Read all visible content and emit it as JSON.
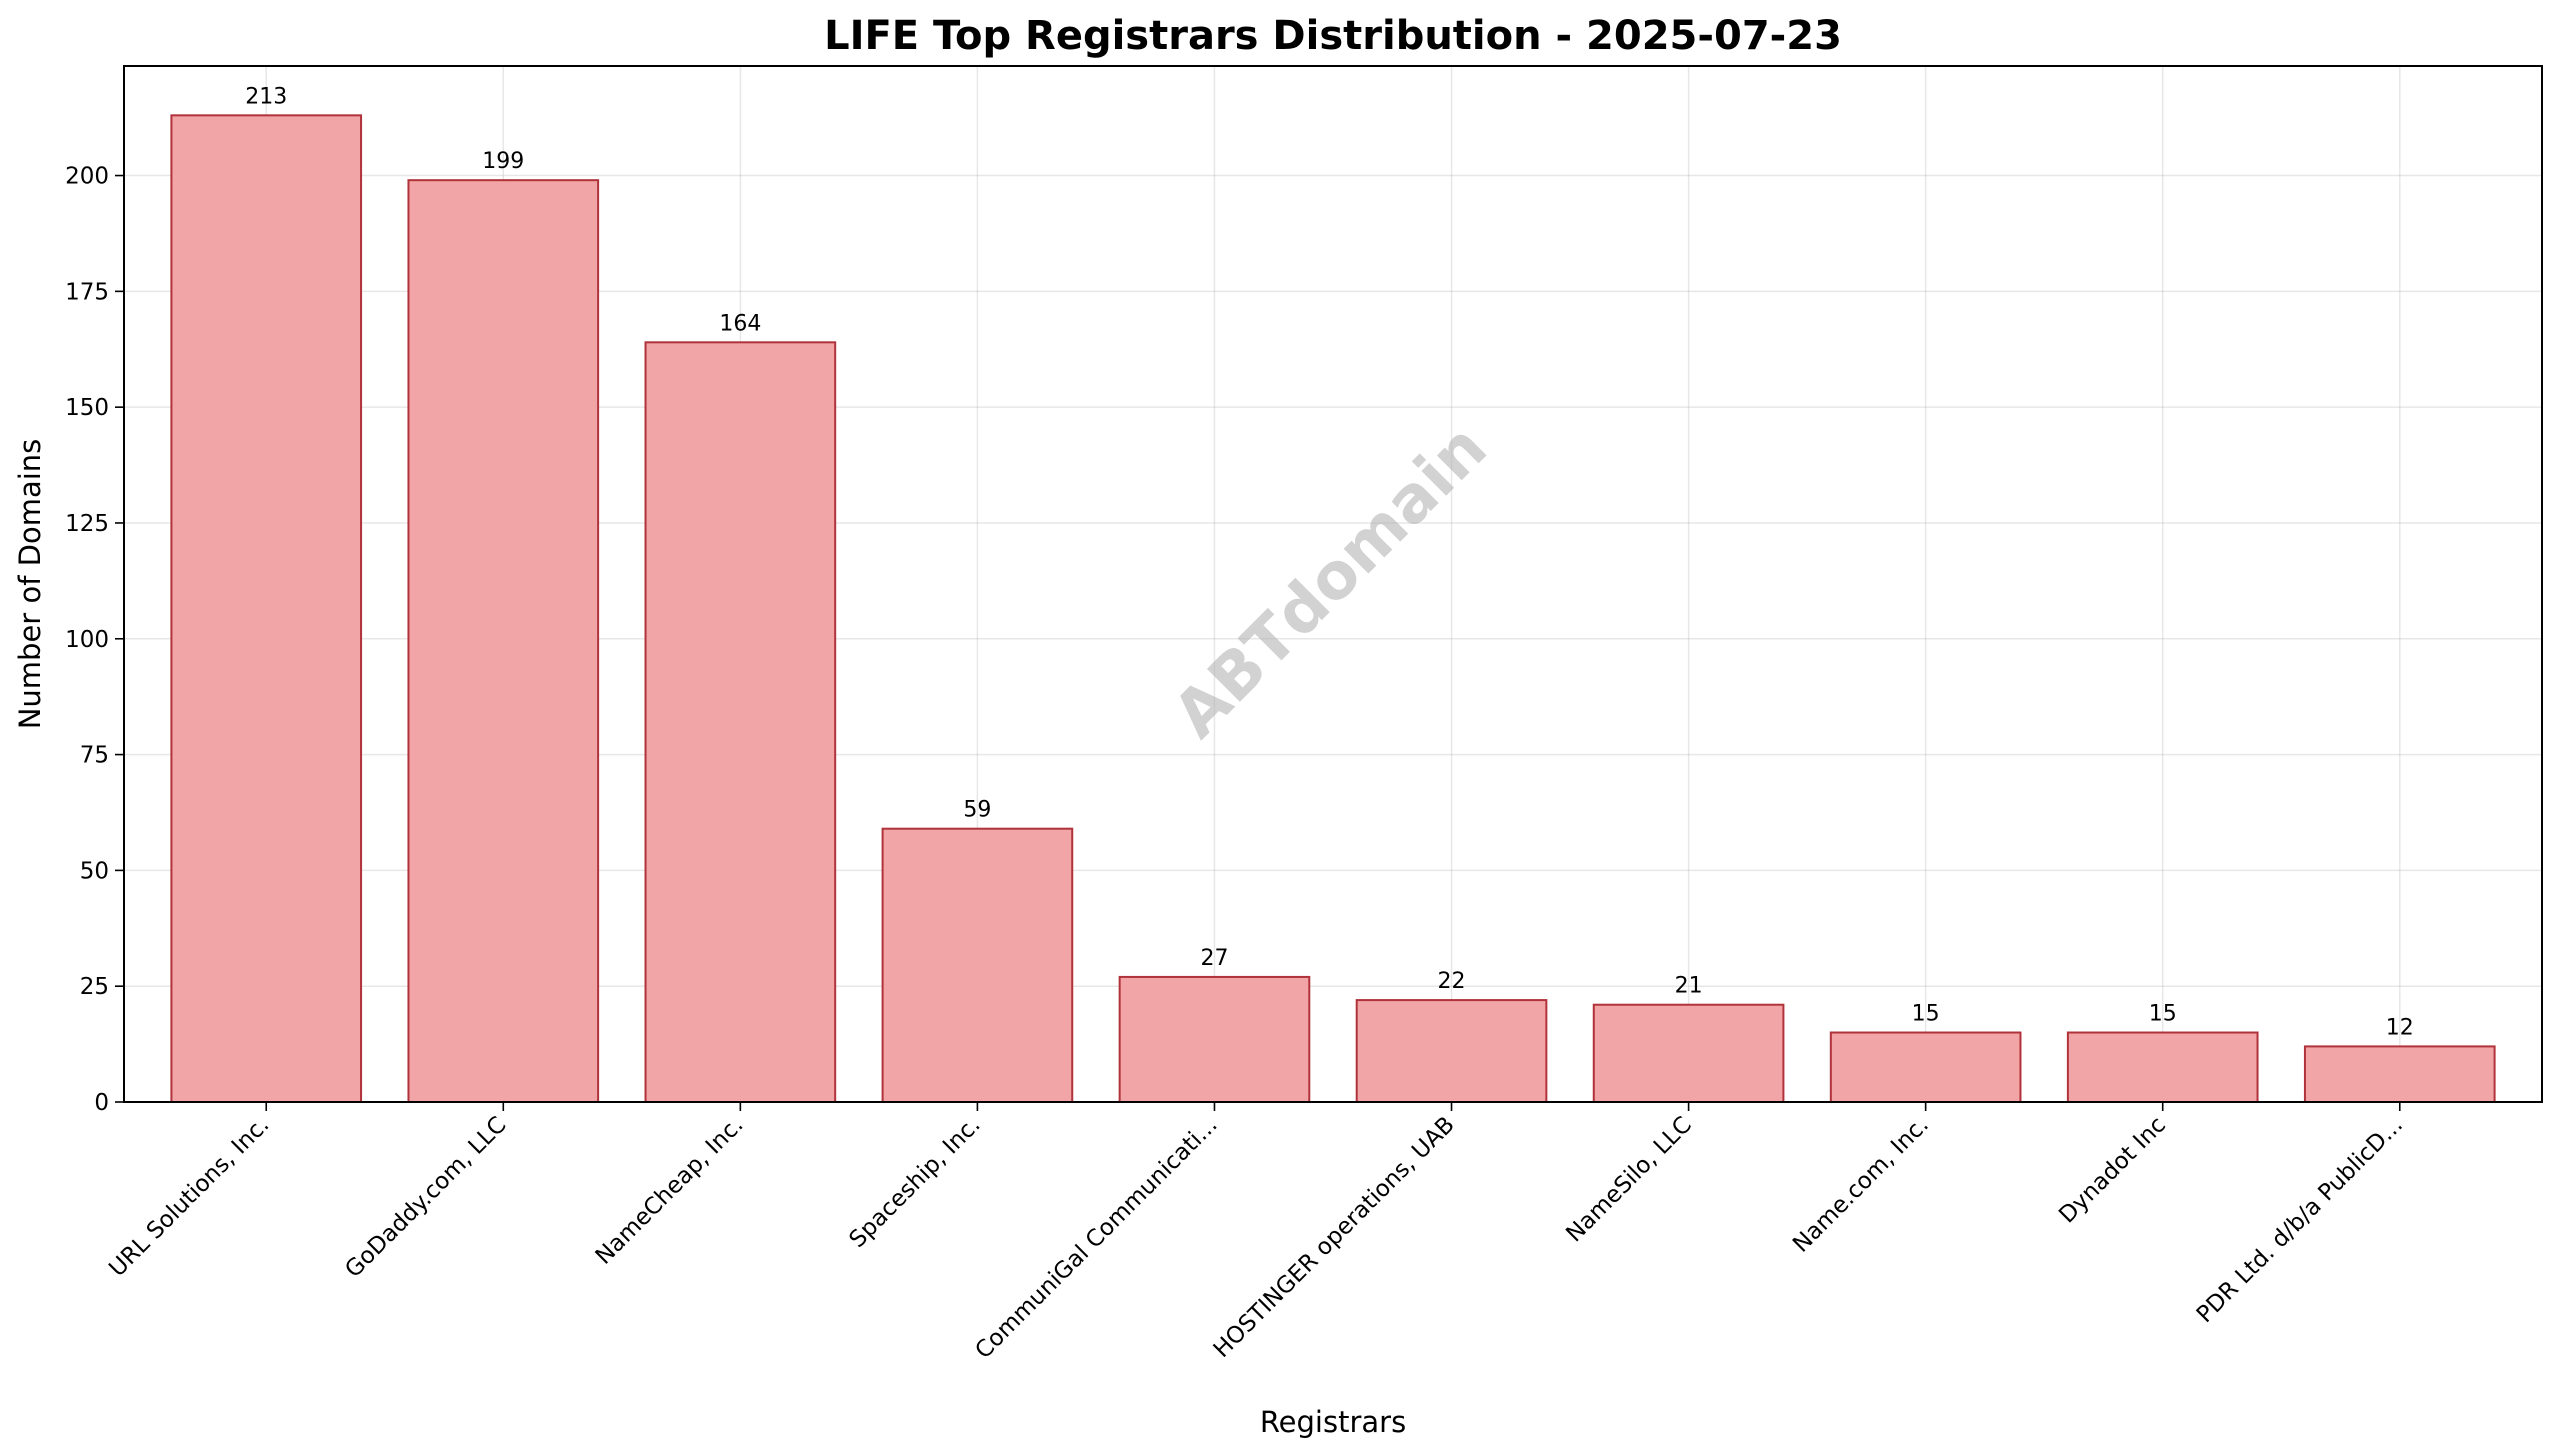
{
  "chart_data": {
    "type": "bar",
    "title": "LIFE Top Registrars Distribution - 2025-07-23",
    "xlabel": "Registrars",
    "ylabel": "Number of Domains",
    "categories": [
      "URL Solutions, Inc.",
      "GoDaddy.com, LLC",
      "NameCheap, Inc.",
      "Spaceship, Inc.",
      "CommuniGal Communicati...",
      "HOSTINGER operations, UAB",
      "NameSilo, LLC",
      "Name.com, Inc.",
      "Dynadot Inc",
      "PDR Ltd. d/b/a PublicD..."
    ],
    "values": [
      213,
      199,
      164,
      59,
      27,
      22,
      21,
      15,
      15,
      12
    ],
    "data_labels": [
      "213",
      "199",
      "164",
      "59",
      "27",
      "22",
      "21",
      "15",
      "15",
      "12"
    ],
    "ylim": [
      0,
      223.65
    ],
    "yticks": [
      0,
      25,
      50,
      75,
      100,
      125,
      150,
      175,
      200
    ],
    "grid": true,
    "bar_fill": "#f2a5a7",
    "bar_edge": "#b0323a",
    "watermark": "ABTdomain"
  }
}
